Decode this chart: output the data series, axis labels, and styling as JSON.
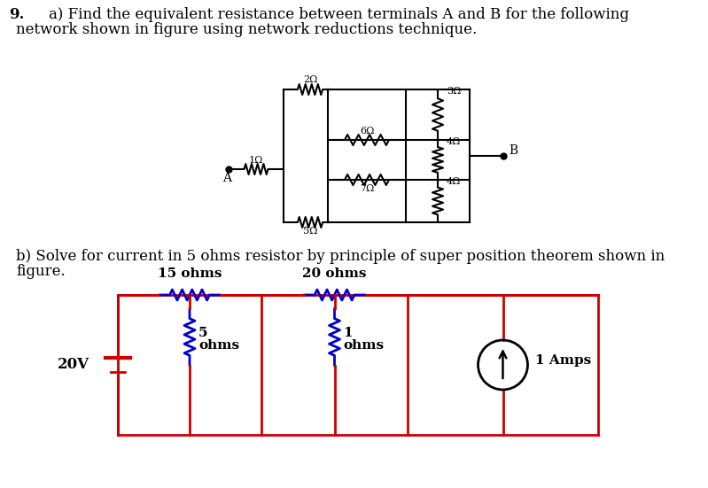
{
  "background_color": "#ffffff",
  "text_color": "#000000",
  "circuit_color_a": "#000000",
  "circuit_color_b": "#cc0000",
  "resistor_color_b": "#0000cc",
  "question_num": "9.",
  "part_a_line1": "a) Find the equivalent resistance between terminals A and B for the following",
  "part_a_line2": "network shown in figure using network reductions technique.",
  "part_b_line1": "b) Solve for current in 5 ohms resistor by principle of super position theorem shown in",
  "part_b_line2": "figure.",
  "R1": "1Ω",
  "R2": "2Ω",
  "R3": "3Ω",
  "R4": "4Ω",
  "R5": "4Ω",
  "R6": "5Ω",
  "R7": "6Ω",
  "R8": "7Ω",
  "lbl_15": "15 ohms",
  "lbl_20": "20 ohms",
  "lbl_5": "5",
  "lbl_ohms": "ohms",
  "lbl_1": "1",
  "lbl_1amps": "1 Amps",
  "lbl_20v": "20V"
}
